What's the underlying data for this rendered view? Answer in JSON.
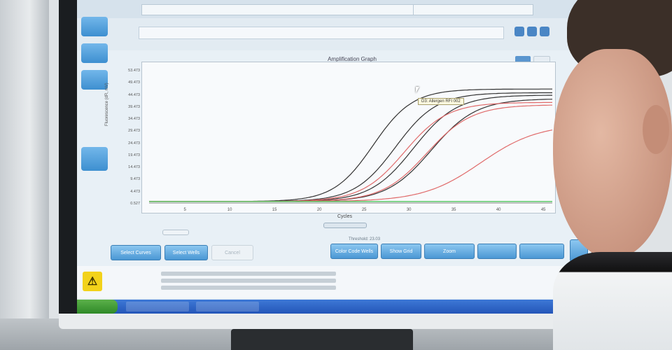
{
  "chart": {
    "title": "Amplification Graph",
    "xlabel": "Cycles",
    "ylabel": "Fluorescence (dR, mV)",
    "tooltip": "D3: Allergen RFI 002"
  },
  "chart_data": {
    "type": "line",
    "title": "Amplification Graph",
    "xlabel": "Cycles",
    "ylabel": "Fluorescence (dR, mV)",
    "xlim": [
      1,
      46
    ],
    "ylim": [
      0,
      57
    ],
    "x_ticks": [
      "5",
      "10",
      "15",
      "20",
      "25",
      "30",
      "35",
      "40",
      "45"
    ],
    "y_ticks": [
      "0.527",
      "4.473",
      "9.473",
      "14.473",
      "19.473",
      "24.473",
      "29.473",
      "34.473",
      "39.473",
      "44.473",
      "49.473",
      "53.473"
    ],
    "grid": false,
    "series": [
      {
        "color": "#333333",
        "midpoint": 26.0,
        "plateau": 46.5,
        "slope": 2.2
      },
      {
        "color": "#333333",
        "midpoint": 28.5,
        "plateau": 45.0,
        "slope": 2.3
      },
      {
        "color": "#333333",
        "midpoint": 30.5,
        "plateau": 44.0,
        "slope": 2.4
      },
      {
        "color": "#333333",
        "midpoint": 32.5,
        "plateau": 42.5,
        "slope": 2.5
      },
      {
        "color": "#e06a6a",
        "midpoint": 29.5,
        "plateau": 41.0,
        "slope": 2.4
      },
      {
        "color": "#e06a6a",
        "midpoint": 32.0,
        "plateau": 40.0,
        "slope": 2.5
      },
      {
        "color": "#e06a6a",
        "midpoint": 38.0,
        "plateau": 32.0,
        "slope": 3.2
      },
      {
        "color": "#3cbf4a",
        "midpoint": 60.0,
        "plateau": 1.0,
        "slope": 3.0
      }
    ]
  },
  "buttons": {
    "cancel": "Cancel",
    "b1": "Select Curves",
    "b2": "Select Wells",
    "b3": "Color Code Wells",
    "b4": "Show Grid",
    "b5": "Zoom"
  },
  "threshold": "Threshold: 23.03",
  "colors": {
    "accent": "#4a97d4",
    "warning": "#f2d21a",
    "taskbar": "#2456b8"
  }
}
